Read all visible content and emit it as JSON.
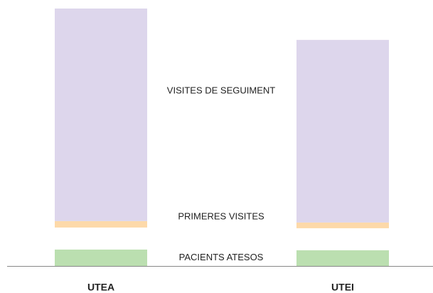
{
  "chart_data": {
    "type": "stacked_bar",
    "categories": [
      "UTEA",
      "UTEI"
    ],
    "series": [
      {
        "name": "PACIENTS ATESOS",
        "color": "#bbdfb0",
        "values": [
          23,
          22
        ]
      },
      {
        "name": "PRIMERES VISITES",
        "color": "#fdd9a9",
        "values": [
          9,
          8
        ]
      },
      {
        "name": "VISITES DE SEGUIMENT",
        "color": "#ddd6ec",
        "values": [
          298,
          256
        ]
      }
    ]
  }
}
